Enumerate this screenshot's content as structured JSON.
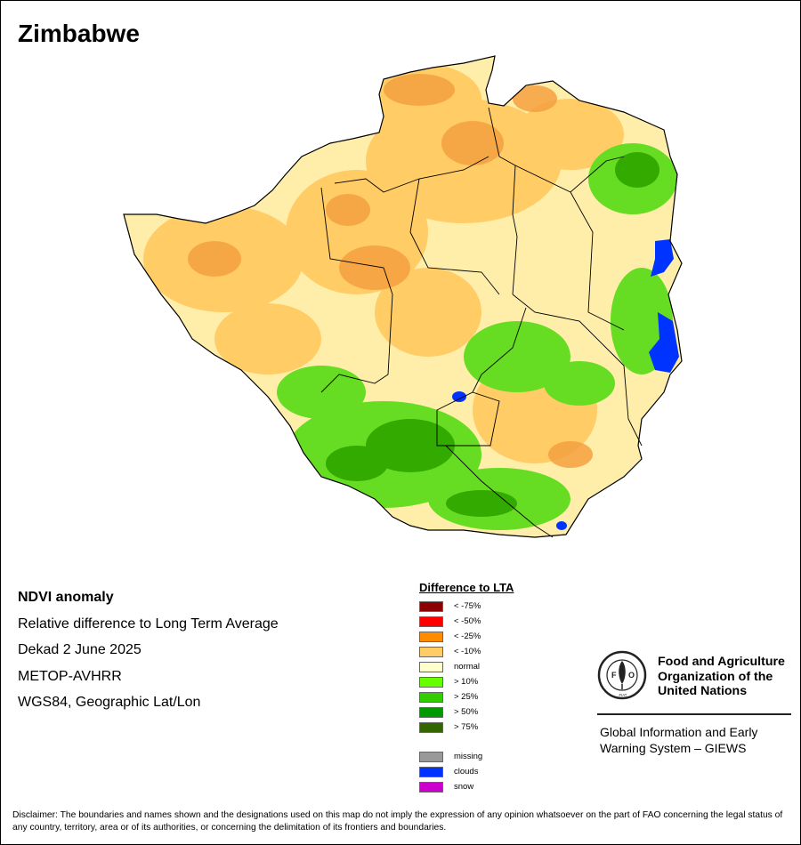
{
  "title": "Zimbabwe",
  "info": {
    "product": "NDVI anomaly",
    "description": "Relative difference to Long Term Average",
    "period": "Dekad 2 June 2025",
    "sensor": "METOP-AVHRR",
    "projection": "WGS84, Geographic Lat/Lon"
  },
  "legend": {
    "title": "Difference to LTA",
    "classes": [
      {
        "label": "< -75%",
        "color": "#8b0000"
      },
      {
        "label": "< -50%",
        "color": "#ff0000"
      },
      {
        "label": "< -25%",
        "color": "#ff8c00"
      },
      {
        "label": "< -10%",
        "color": "#ffcc66"
      },
      {
        "label": "normal",
        "color": "#ffffcc"
      },
      {
        "label": "> 10%",
        "color": "#66ff00"
      },
      {
        "label": "> 25%",
        "color": "#33cc00"
      },
      {
        "label": "> 50%",
        "color": "#009900"
      },
      {
        "label": "> 75%",
        "color": "#336600"
      }
    ],
    "other": [
      {
        "label": "missing",
        "color": "#999999"
      },
      {
        "label": "clouds",
        "color": "#0033ff"
      },
      {
        "label": "snow",
        "color": "#cc00cc"
      }
    ]
  },
  "org": {
    "name": "Food and Agriculture Organization of the United Nations",
    "logo_letters": "FAO",
    "logo_motto": "FIAT PANIS",
    "system": "Global Information and Early Warning System – GIEWS"
  },
  "disclaimer": "Disclaimer: The boundaries and names shown and the designations used on this map do not imply the expression of any opinion whatsoever on the part of FAO concerning the legal status of any country, territory, area or of its authorities, or concerning the delimitation of its frontiers and boundaries."
}
